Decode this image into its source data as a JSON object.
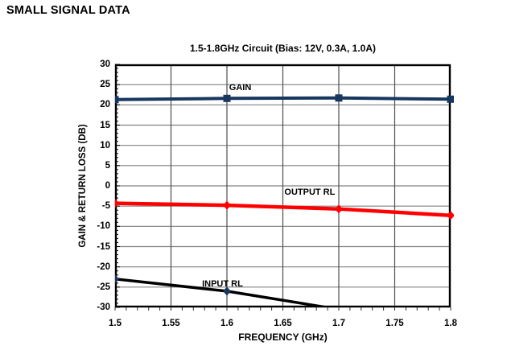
{
  "page": {
    "heading": "SMALL SIGNAL DATA"
  },
  "chart_data": {
    "type": "line",
    "title": "1.5-1.8GHz Circuit (Bias: 12V, 0.3A, 1.0A)",
    "xlabel": "FREQUENCY (GHz)",
    "ylabel": "GAIN & RETURN LOSS (DB)",
    "xlim": [
      1.5,
      1.8
    ],
    "ylim": [
      -30,
      30
    ],
    "x_tick_labels": [
      "1.5",
      "1.55",
      "1.6",
      "1.65",
      "1.7",
      "1.75",
      "1.8"
    ],
    "x_ticks": [
      1.5,
      1.55,
      1.6,
      1.65,
      1.7,
      1.75,
      1.8
    ],
    "y_tick_labels": [
      "30",
      "25",
      "20",
      "15",
      "10",
      "5",
      "0",
      "-5",
      "-10",
      "-15",
      "-20",
      "-25",
      "-30"
    ],
    "y_ticks": [
      30,
      25,
      20,
      15,
      10,
      5,
      0,
      -5,
      -10,
      -15,
      -20,
      -25,
      -30
    ],
    "y_minor_step": 1,
    "x_minor_step": 0.01,
    "grid": true,
    "legend_position": "inline-annotations",
    "colors": {
      "grid_horizontal": "#808080",
      "grid_vertical": "#4d4d4d",
      "border": "#000000"
    },
    "series": [
      {
        "name": "GAIN",
        "color": "#17375E",
        "line_width": 4,
        "marker": "square",
        "marker_color": "#17375E",
        "x": [
          1.5,
          1.6,
          1.7,
          1.8
        ],
        "y": [
          21.3,
          21.6,
          21.7,
          21.4
        ],
        "label": {
          "text": "GAIN",
          "x": 1.602,
          "y": 24.2,
          "align": "left"
        }
      },
      {
        "name": "OUTPUT RL",
        "color": "#FF0000",
        "line_width": 4.5,
        "marker": "diamond",
        "marker_color": "#FF0000",
        "x": [
          1.5,
          1.6,
          1.7,
          1.8
        ],
        "y": [
          -4.3,
          -4.8,
          -5.7,
          -7.3
        ],
        "label": {
          "text": "OUTPUT RL",
          "x": 1.674,
          "y": -1.6,
          "align": "center"
        }
      },
      {
        "name": "INPUT RL",
        "color": "#000000",
        "line_width": 3.5,
        "marker": "diamond",
        "marker_color": "#17375E",
        "x": [
          1.5,
          1.6,
          1.7
        ],
        "y": [
          -23,
          -26,
          -30.5
        ],
        "markers_at": [
          1.5,
          1.6
        ],
        "label": {
          "text": "INPUT RL",
          "x": 1.596,
          "y": -24.2,
          "align": "center"
        }
      }
    ]
  }
}
